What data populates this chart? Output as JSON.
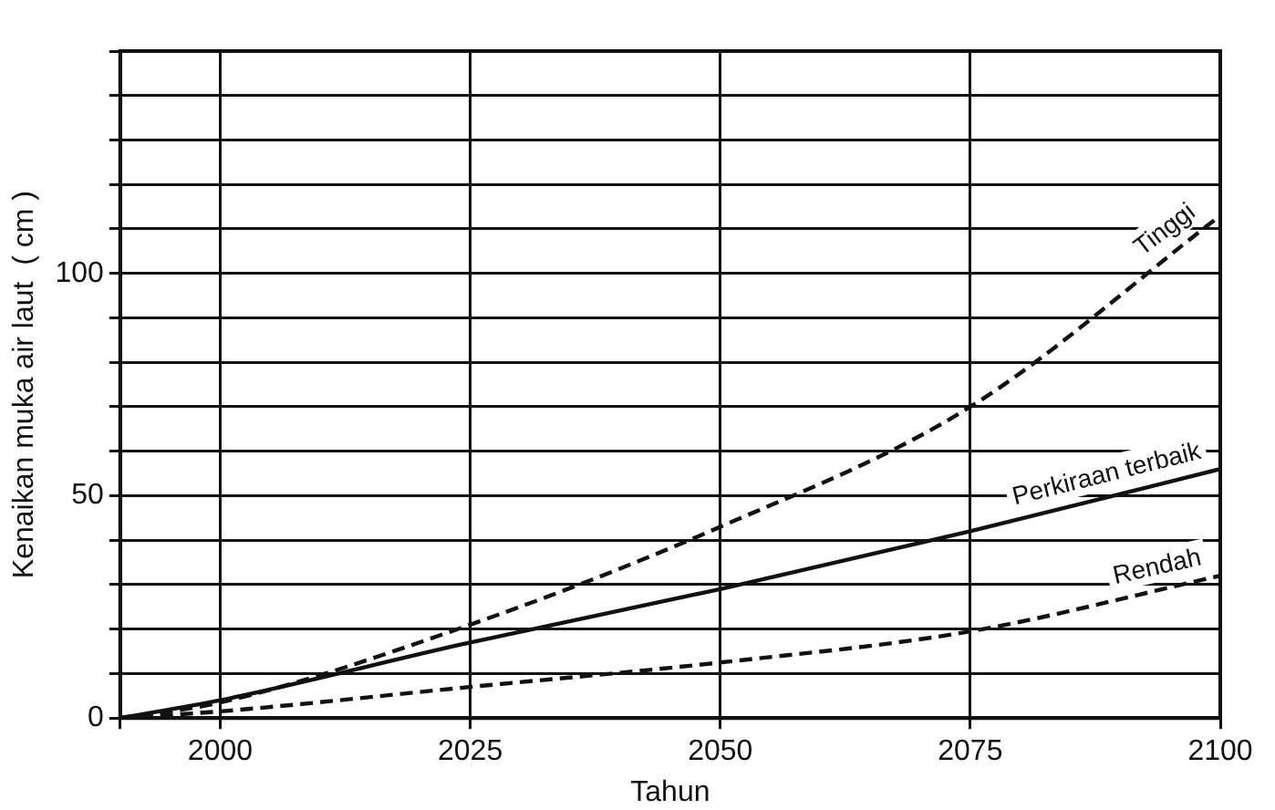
{
  "chart_data": {
    "type": "line",
    "xlabel": "Tahun",
    "ylabel": "Kenaikan muka air laut  ( cm )",
    "x": [
      1990,
      2000,
      2025,
      2050,
      2075,
      2100
    ],
    "series": [
      {
        "name": "Tinggi",
        "color": "#111111",
        "line_style": "dashed",
        "values": [
          0,
          3.5,
          21,
          43,
          70,
          113
        ]
      },
      {
        "name": "Perkiraan terbaik",
        "color": "#111111",
        "line_style": "solid",
        "values": [
          0,
          4,
          17,
          29,
          42,
          56
        ]
      },
      {
        "name": "Rendah",
        "color": "#111111",
        "line_style": "dashed",
        "values": [
          0,
          1.5,
          7,
          12.5,
          19.5,
          32
        ]
      }
    ],
    "xlim": [
      1990,
      2100
    ],
    "xticks": [
      {
        "value": 1990,
        "label": null
      },
      2000,
      2025,
      2050,
      2075,
      2100
    ],
    "ylim": [
      0,
      150
    ],
    "yticks": [
      0,
      {
        "value": 10,
        "label": null
      },
      {
        "value": 20,
        "label": null
      },
      {
        "value": 30,
        "label": null
      },
      {
        "value": 40,
        "label": null
      },
      50,
      {
        "value": 60,
        "label": null
      },
      {
        "value": 70,
        "label": null
      },
      {
        "value": 80,
        "label": null
      },
      {
        "value": 90,
        "label": null
      },
      100,
      {
        "value": 110,
        "label": null
      },
      {
        "value": 120,
        "label": null
      },
      {
        "value": 130,
        "label": null
      },
      {
        "value": 140,
        "label": null
      },
      {
        "value": 150,
        "label": null
      }
    ],
    "grid": true,
    "legend": false,
    "marker": "none"
  }
}
